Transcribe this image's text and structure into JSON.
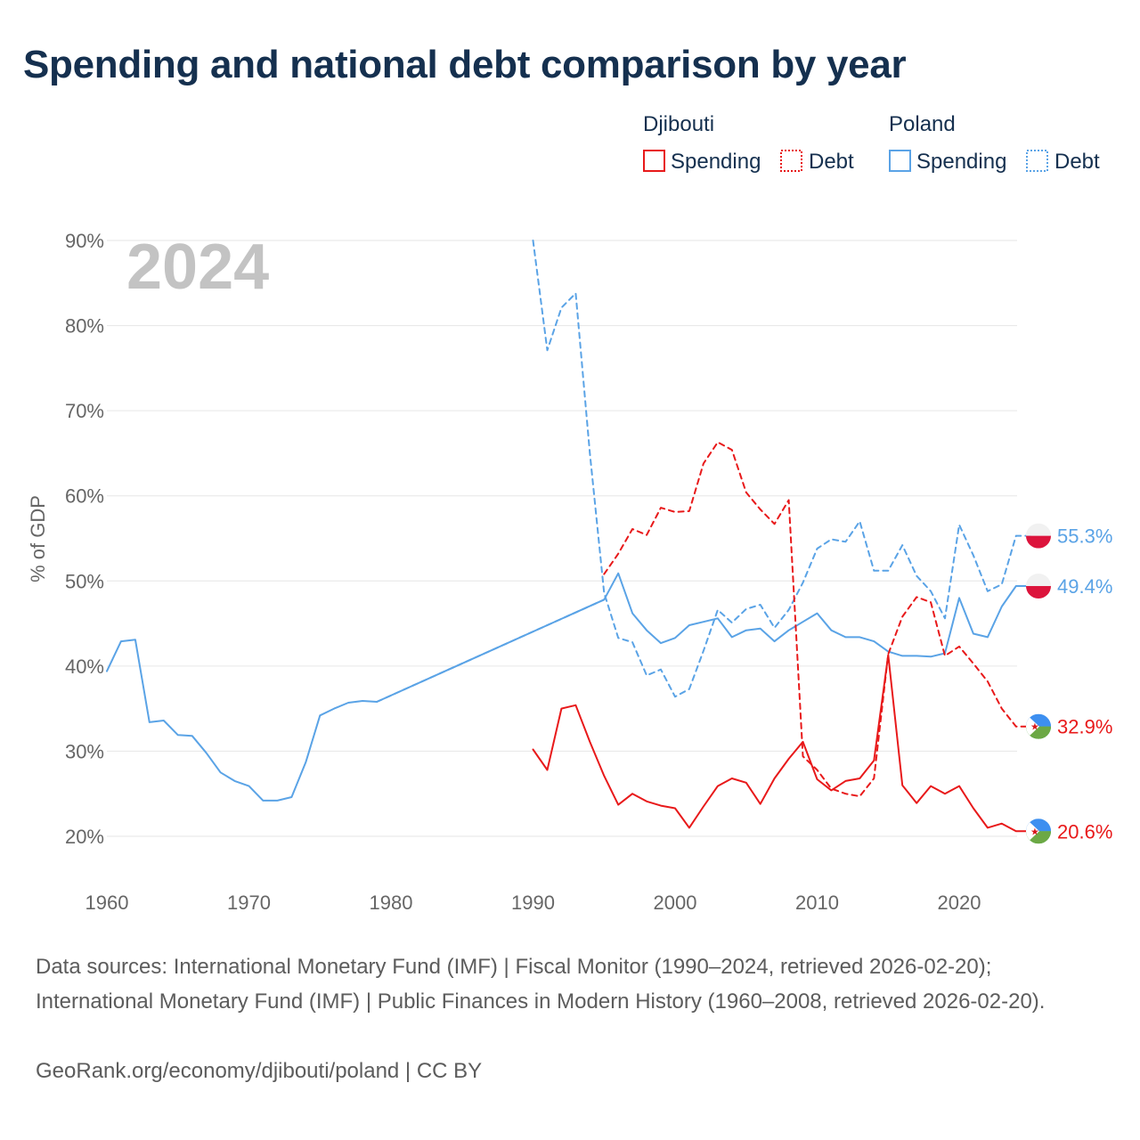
{
  "chart_data": {
    "type": "line",
    "title": "Spending and national debt comparison by year",
    "year_label": "2024",
    "ylabel": "% of GDP",
    "xlim": [
      1960,
      2025
    ],
    "ylim": [
      15,
      90
    ],
    "x_ticks": [
      1960,
      1970,
      1980,
      1990,
      2000,
      2010,
      2020
    ],
    "x_tick_labels": [
      "1960",
      "1970",
      "1980",
      "1990",
      "2000",
      "2010",
      "2020"
    ],
    "y_ticks": [
      20,
      30,
      40,
      50,
      60,
      70,
      80,
      90
    ],
    "y_tick_labels": [
      "20%",
      "30%",
      "40%",
      "50%",
      "60%",
      "70%",
      "80%",
      "90%"
    ],
    "legend": {
      "groups": [
        {
          "country": "Djibouti",
          "color": "#e8191a",
          "spending_label": "Spending",
          "debt_label": "Debt"
        },
        {
          "country": "Poland",
          "color": "#5aa3e6",
          "spending_label": "Spending",
          "debt_label": "Debt"
        }
      ]
    },
    "series": [
      {
        "name": "Poland Spending",
        "country": "Poland",
        "measure": "Spending",
        "color": "#5aa3e6",
        "dashed": false,
        "end_label": "49.4%",
        "flag": "poland",
        "points": [
          [
            1960,
            39.4
          ],
          [
            1961,
            42.9
          ],
          [
            1962,
            43.1
          ],
          [
            1963,
            33.4
          ],
          [
            1964,
            33.6
          ],
          [
            1965,
            31.9
          ],
          [
            1966,
            31.8
          ],
          [
            1967,
            29.8
          ],
          [
            1968,
            27.5
          ],
          [
            1969,
            26.5
          ],
          [
            1970,
            25.9
          ],
          [
            1971,
            24.2
          ],
          [
            1972,
            24.2
          ],
          [
            1973,
            24.6
          ],
          [
            1974,
            28.7
          ],
          [
            1975,
            34.2
          ],
          [
            1976,
            35.0
          ],
          [
            1977,
            35.7
          ],
          [
            1978,
            35.9
          ],
          [
            1979,
            35.8
          ],
          [
            1995,
            47.8
          ],
          [
            1996,
            50.9
          ],
          [
            1997,
            46.2
          ],
          [
            1998,
            44.2
          ],
          [
            1999,
            42.7
          ],
          [
            2000,
            43.3
          ],
          [
            2001,
            44.8
          ],
          [
            2002,
            45.2
          ],
          [
            2003,
            45.6
          ],
          [
            2004,
            43.4
          ],
          [
            2005,
            44.2
          ],
          [
            2006,
            44.4
          ],
          [
            2007,
            42.9
          ],
          [
            2008,
            44.2
          ],
          [
            2009,
            45.2
          ],
          [
            2010,
            46.2
          ],
          [
            2011,
            44.2
          ],
          [
            2012,
            43.4
          ],
          [
            2013,
            43.4
          ],
          [
            2014,
            42.9
          ],
          [
            2015,
            41.7
          ],
          [
            2016,
            41.2
          ],
          [
            2017,
            41.2
          ],
          [
            2018,
            41.1
          ],
          [
            2019,
            41.5
          ],
          [
            2020,
            48.0
          ],
          [
            2021,
            43.8
          ],
          [
            2022,
            43.4
          ],
          [
            2023,
            47.0
          ],
          [
            2024,
            49.4
          ],
          [
            2025,
            49.4
          ]
        ]
      },
      {
        "name": "Poland Spending (interpolated gap)",
        "country": "Poland",
        "measure": "Spending",
        "color": "#5aa3e6",
        "dashed": true,
        "points": [
          [
            1979,
            35.8
          ],
          [
            1995,
            47.8
          ]
        ]
      },
      {
        "name": "Poland Debt",
        "country": "Poland",
        "measure": "Debt",
        "color": "#5aa3e6",
        "dashed": true,
        "end_label": "55.3%",
        "flag": "poland",
        "points": [
          [
            1990,
            90.0
          ],
          [
            1991,
            77.1
          ],
          [
            1992,
            82.1
          ],
          [
            1993,
            83.8
          ],
          [
            1994,
            65.0
          ],
          [
            1995,
            48.6
          ],
          [
            1996,
            43.3
          ],
          [
            1997,
            42.8
          ],
          [
            1998,
            38.9
          ],
          [
            1999,
            39.6
          ],
          [
            2000,
            36.4
          ],
          [
            2001,
            37.3
          ],
          [
            2002,
            41.8
          ],
          [
            2003,
            46.6
          ],
          [
            2004,
            45.1
          ],
          [
            2005,
            46.7
          ],
          [
            2006,
            47.2
          ],
          [
            2007,
            44.5
          ],
          [
            2008,
            46.6
          ],
          [
            2009,
            49.8
          ],
          [
            2010,
            53.8
          ],
          [
            2011,
            54.9
          ],
          [
            2012,
            54.6
          ],
          [
            2013,
            57.0
          ],
          [
            2014,
            51.2
          ],
          [
            2015,
            51.2
          ],
          [
            2016,
            54.2
          ],
          [
            2017,
            50.6
          ],
          [
            2018,
            48.8
          ],
          [
            2019,
            45.6
          ],
          [
            2020,
            56.6
          ],
          [
            2021,
            53.0
          ],
          [
            2022,
            48.8
          ],
          [
            2023,
            49.6
          ],
          [
            2024,
            55.3
          ],
          [
            2025,
            55.3
          ]
        ]
      },
      {
        "name": "Djibouti Spending",
        "country": "Djibouti",
        "measure": "Spending",
        "color": "#e8191a",
        "dashed": false,
        "end_label": "20.6%",
        "flag": "djibouti",
        "points": [
          [
            1990,
            30.2
          ],
          [
            1991,
            27.8
          ],
          [
            1992,
            35.0
          ],
          [
            1993,
            35.4
          ],
          [
            1994,
            31.1
          ],
          [
            1995,
            27.1
          ],
          [
            1996,
            23.7
          ],
          [
            1997,
            25.0
          ],
          [
            1998,
            24.1
          ],
          [
            1999,
            23.6
          ],
          [
            2000,
            23.3
          ],
          [
            2001,
            21.0
          ],
          [
            2002,
            23.5
          ],
          [
            2003,
            25.9
          ],
          [
            2004,
            26.8
          ],
          [
            2005,
            26.3
          ],
          [
            2006,
            23.8
          ],
          [
            2007,
            26.8
          ],
          [
            2008,
            29.1
          ],
          [
            2009,
            31.1
          ],
          [
            2010,
            26.7
          ],
          [
            2011,
            25.4
          ],
          [
            2012,
            26.5
          ],
          [
            2013,
            26.8
          ],
          [
            2014,
            28.9
          ],
          [
            2015,
            41.3
          ],
          [
            2016,
            26.0
          ],
          [
            2017,
            23.9
          ],
          [
            2018,
            25.9
          ],
          [
            2019,
            25.0
          ],
          [
            2020,
            25.9
          ],
          [
            2021,
            23.3
          ],
          [
            2022,
            21.0
          ],
          [
            2023,
            21.5
          ],
          [
            2024,
            20.6
          ],
          [
            2025,
            20.6
          ]
        ]
      },
      {
        "name": "Djibouti Debt",
        "country": "Djibouti",
        "measure": "Debt",
        "color": "#e8191a",
        "dashed": true,
        "end_label": "32.9%",
        "flag": "djibouti",
        "points": [
          [
            1995,
            50.8
          ],
          [
            1996,
            53.2
          ],
          [
            1997,
            56.1
          ],
          [
            1998,
            55.4
          ],
          [
            1999,
            58.6
          ],
          [
            2000,
            58.1
          ],
          [
            2001,
            58.2
          ],
          [
            2002,
            63.8
          ],
          [
            2003,
            66.3
          ],
          [
            2004,
            65.4
          ],
          [
            2005,
            60.4
          ],
          [
            2006,
            58.4
          ],
          [
            2007,
            56.7
          ],
          [
            2008,
            59.5
          ],
          [
            2009,
            29.4
          ],
          [
            2010,
            27.8
          ],
          [
            2011,
            25.6
          ],
          [
            2012,
            25.0
          ],
          [
            2013,
            24.7
          ],
          [
            2014,
            26.8
          ],
          [
            2015,
            41.4
          ],
          [
            2016,
            45.8
          ],
          [
            2017,
            48.1
          ],
          [
            2018,
            47.5
          ],
          [
            2019,
            41.2
          ],
          [
            2020,
            42.3
          ],
          [
            2021,
            40.3
          ],
          [
            2022,
            38.2
          ],
          [
            2023,
            35.0
          ],
          [
            2024,
            32.9
          ],
          [
            2025,
            32.9
          ]
        ]
      }
    ]
  },
  "footer": {
    "sources": "Data sources: International Monetary Fund (IMF) | Fiscal Monitor (1990–2024, retrieved 2026-02-20); International Monetary Fund (IMF) | Public Finances in Modern History (1960–2008, retrieved 2026-02-20).",
    "credit": "GeoRank.org/economy/djibouti/poland | CC BY"
  }
}
